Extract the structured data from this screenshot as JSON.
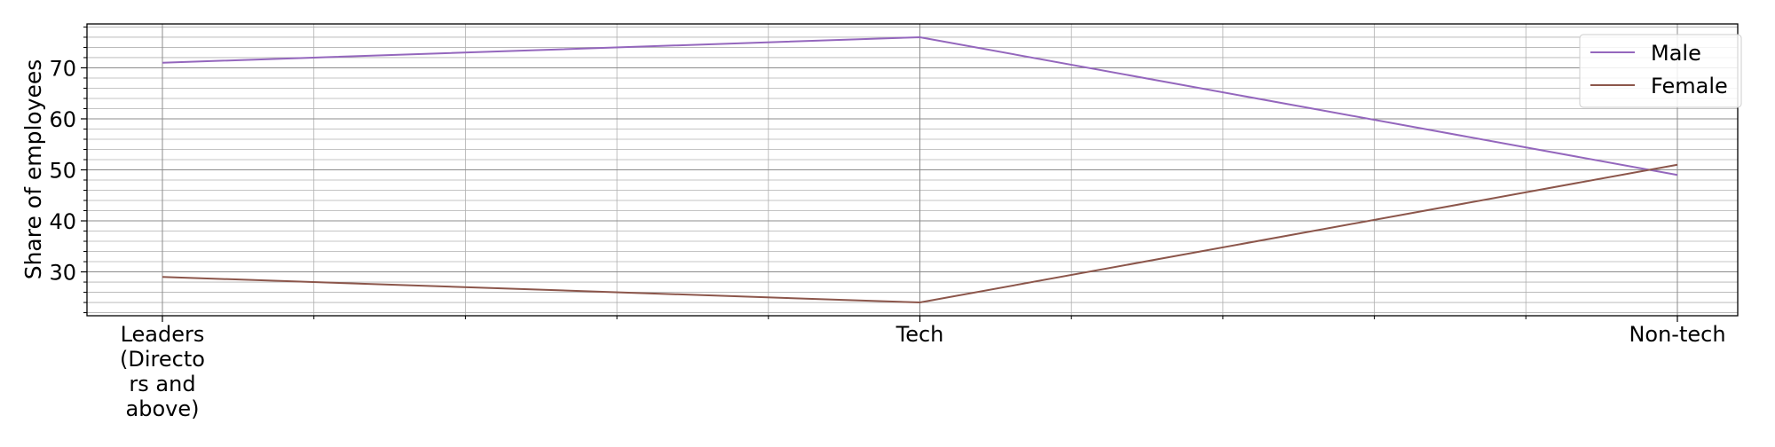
{
  "chart_data": {
    "type": "line",
    "categories": [
      "Leaders (Directors and above)",
      "Tech",
      "Non-tech"
    ],
    "category_label_lines": [
      [
        "Leaders",
        "(Directo",
        "rs and",
        "above)"
      ],
      [
        "Tech"
      ],
      [
        "Non-tech"
      ]
    ],
    "series": [
      {
        "name": "Male",
        "values": [
          71,
          76,
          49
        ],
        "color": "#9467bd"
      },
      {
        "name": "Female",
        "values": [
          29,
          24,
          51
        ],
        "color": "#8c564b"
      }
    ],
    "xlabel": "",
    "ylabel": "Share of employees",
    "ylim": [
      21.4,
      78.6
    ],
    "yticks": [
      30,
      40,
      50,
      60,
      70
    ],
    "grid": true,
    "minor_grid": true,
    "legend_position": "top-right"
  }
}
